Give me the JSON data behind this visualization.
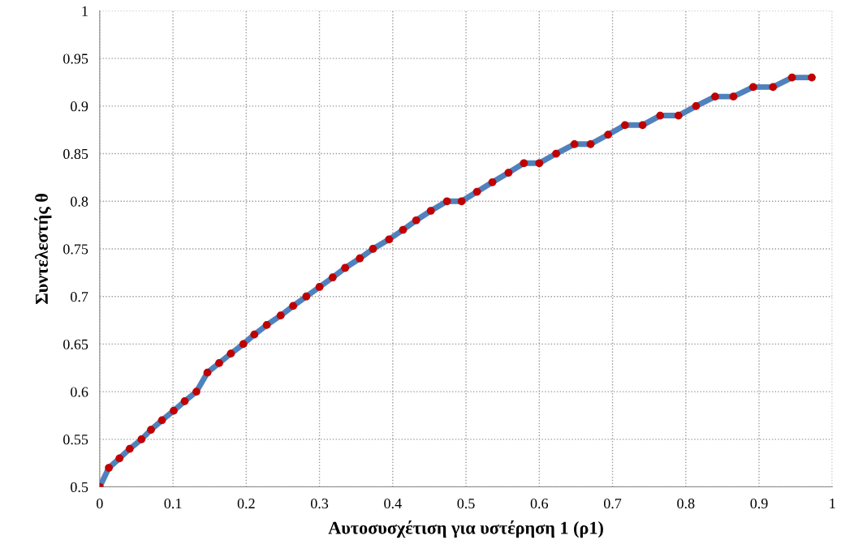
{
  "chart_data": {
    "type": "line",
    "xlabel": "Αυτοσυσχέτιση για υστέρηση 1 (ρ1)",
    "ylabel": "Συντελεστής θ",
    "xlim": [
      0,
      1
    ],
    "xticks": [
      0,
      0.1,
      0.2,
      0.3,
      0.4,
      0.5,
      0.6,
      0.7,
      0.8,
      0.9,
      1
    ],
    "ylim": [
      0.5,
      1
    ],
    "yticks": [
      0.5,
      0.55,
      0.6,
      0.65,
      0.7,
      0.75,
      0.8,
      0.85,
      0.9,
      0.95,
      1
    ],
    "grid": true,
    "legend": false,
    "marker": "circle",
    "line_style": "solid",
    "series": [
      {
        "color": "#4f81bd",
        "colors": [
          "#c00000",
          "#c00000",
          "#c00000",
          "#c00000",
          "#c00000",
          "#c00000",
          "#c00000",
          "#c00000",
          "#c00000",
          "#c00000",
          "#c00000",
          "#c00000",
          "#c00000",
          "#c00000",
          "#c00000",
          "#c00000",
          "#c00000",
          "#c00000",
          "#c00000",
          "#c00000",
          "#c00000",
          "#c00000",
          "#c00000",
          "#c00000",
          "#c00000",
          "#c00000",
          "#c00000",
          "#c00000",
          "#c00000",
          "#c00000",
          "#c00000",
          "#c00000",
          "#c00000",
          "#c00000",
          "#c00000",
          "#c00000",
          "#c00000",
          "#c00000",
          "#c00000",
          "#c00000",
          "#c00000",
          "#c00000",
          "#c00000",
          "#c00000",
          "#c00000",
          "#c00000",
          "#c00000",
          "#c00000",
          "#c00000",
          "#c00000"
        ],
        "x": [
          0,
          0.0125,
          0.027,
          0.041,
          0.057,
          0.07,
          0.085,
          0.101,
          0.116,
          0.132,
          0.147,
          0.163,
          0.179,
          0.196,
          0.211,
          0.228,
          0.247,
          0.264,
          0.282,
          0.3,
          0.318,
          0.335,
          0.355,
          0.373,
          0.395,
          0.414,
          0.432,
          0.452,
          0.474,
          0.494,
          0.515,
          0.536,
          0.558,
          0.579,
          0.6,
          0.623,
          0.648,
          0.67,
          0.694,
          0.717,
          0.741,
          0.765,
          0.79,
          0.814,
          0.84,
          0.865,
          0.892,
          0.919,
          0.945,
          0.972
        ],
        "values": [
          0.5,
          0.52,
          0.53,
          0.54,
          0.55,
          0.56,
          0.57,
          0.58,
          0.59,
          0.6,
          0.62,
          0.63,
          0.64,
          0.65,
          0.66,
          0.67,
          0.68,
          0.69,
          0.7,
          0.71,
          0.72,
          0.73,
          0.74,
          0.75,
          0.76,
          0.77,
          0.78,
          0.79,
          0.8,
          0.8,
          0.81,
          0.82,
          0.83,
          0.84,
          0.84,
          0.85,
          0.86,
          0.86,
          0.87,
          0.88,
          0.88,
          0.89,
          0.89,
          0.9,
          0.91,
          0.91,
          0.92,
          0.92,
          0.93,
          0.93
        ]
      }
    ]
  }
}
